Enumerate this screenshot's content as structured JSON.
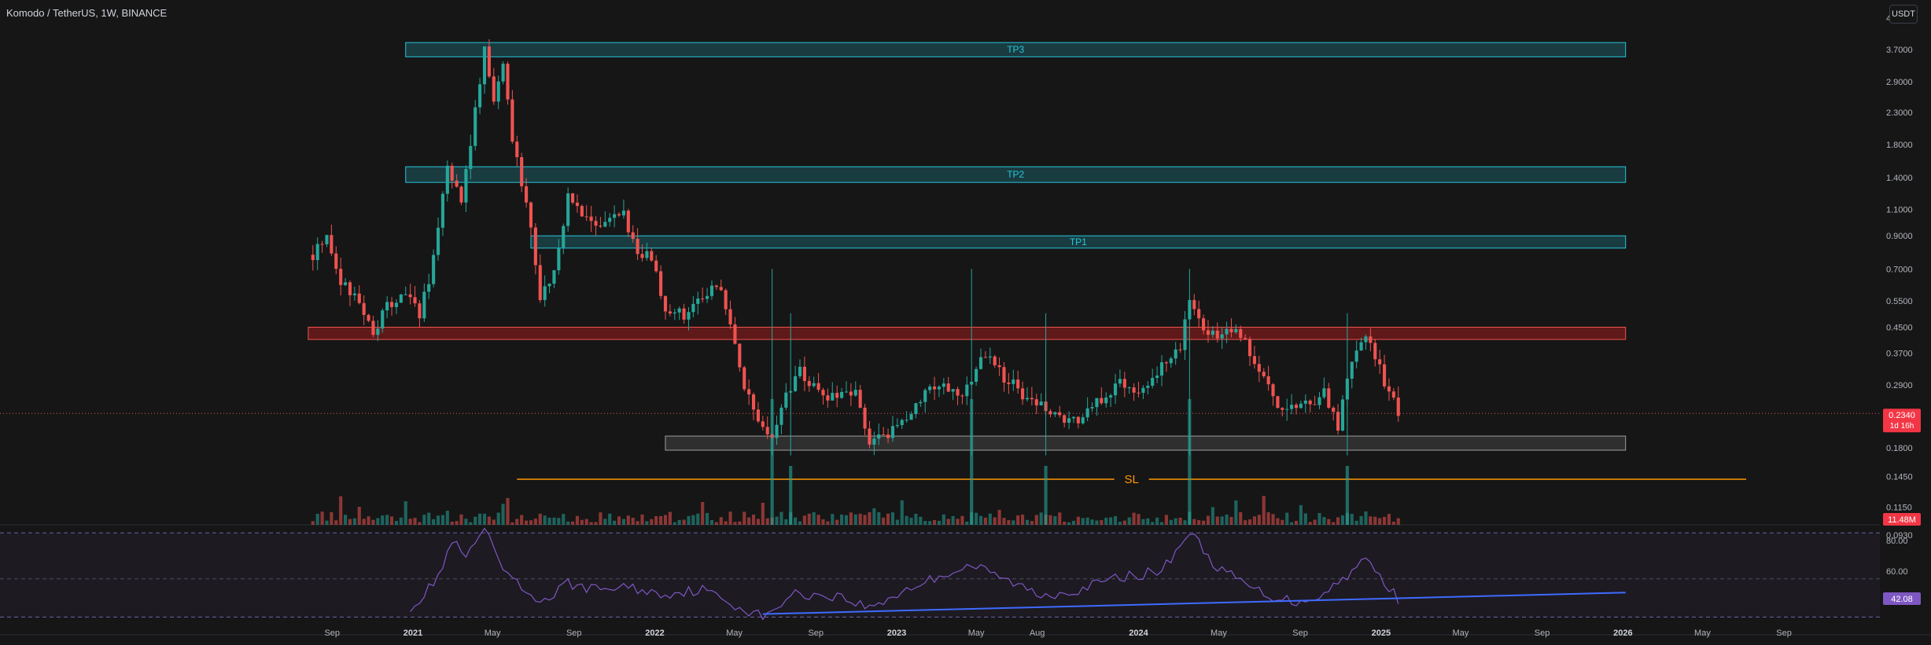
{
  "title": "Komodo / TetherUS, 1W, BINANCE",
  "currency_button": "USDT",
  "colors": {
    "background": "#161616",
    "up": "#26a69a",
    "down": "#ef5350",
    "tp_zone": "#26c6da",
    "resistance_zone": "#b71c1c",
    "support_zone": "#9e9e9e",
    "stop_loss": "#ff9800",
    "rsi_line": "#7e57c2",
    "rsi_trend": "#3f6bff",
    "price_badge": "#f23645",
    "rsi_badge": "#7e57c2"
  },
  "chart_data": [
    {
      "type": "candlestick",
      "interval": "1W",
      "scale": "log",
      "price_axis_ticks": [
        "4.7000",
        "3.7000",
        "2.9000",
        "2.3000",
        "1.8000",
        "1.4000",
        "1.1000",
        "0.9000",
        "0.7000",
        "0.5500",
        "0.4500",
        "0.3700",
        "0.2900",
        "0.2340",
        "0.1800",
        "0.1450",
        "0.1150",
        "0.0930"
      ],
      "time_axis_ticks": [
        "Sep",
        "2021",
        "May",
        "Sep",
        "2022",
        "May",
        "Sep",
        "2023",
        "May",
        "Aug",
        "2024",
        "May",
        "Sep",
        "2025",
        "May",
        "Sep",
        "2026",
        "May",
        "Sep"
      ],
      "current_price": "0.2340",
      "countdown": "1d 16h",
      "volume_label": "11.48M",
      "price_path": [
        [
          "2020-08-03",
          0.78
        ],
        [
          "2020-08-24",
          0.92
        ],
        [
          "2020-09-14",
          0.63
        ],
        [
          "2020-10-12",
          0.55
        ],
        [
          "2020-11-02",
          0.44
        ],
        [
          "2020-11-23",
          0.52
        ],
        [
          "2020-12-21",
          0.58
        ],
        [
          "2021-01-11",
          0.5
        ],
        [
          "2021-02-01",
          0.75
        ],
        [
          "2021-02-22",
          1.5
        ],
        [
          "2021-03-15",
          1.2
        ],
        [
          "2021-04-05",
          2.3
        ],
        [
          "2021-04-19",
          3.7
        ],
        [
          "2021-05-03",
          2.5
        ],
        [
          "2021-05-17",
          3.3
        ],
        [
          "2021-05-31",
          1.8
        ],
        [
          "2021-06-21",
          1.2
        ],
        [
          "2021-07-12",
          0.58
        ],
        [
          "2021-08-02",
          0.68
        ],
        [
          "2021-08-23",
          1.2
        ],
        [
          "2021-09-13",
          1.05
        ],
        [
          "2021-10-04",
          0.95
        ],
        [
          "2021-10-25",
          1.0
        ],
        [
          "2021-11-15",
          1.05
        ],
        [
          "2021-12-06",
          0.82
        ],
        [
          "2021-12-27",
          0.75
        ],
        [
          "2022-01-17",
          0.52
        ],
        [
          "2022-02-14",
          0.5
        ],
        [
          "2022-03-14",
          0.55
        ],
        [
          "2022-04-04",
          0.62
        ],
        [
          "2022-04-25",
          0.48
        ],
        [
          "2022-05-16",
          0.28
        ],
        [
          "2022-06-06",
          0.22
        ],
        [
          "2022-06-27",
          0.2
        ],
        [
          "2022-07-18",
          0.27
        ],
        [
          "2022-08-08",
          0.32
        ],
        [
          "2022-09-05",
          0.27
        ],
        [
          "2022-10-03",
          0.26
        ],
        [
          "2022-10-31",
          0.27
        ],
        [
          "2022-11-21",
          0.19
        ],
        [
          "2022-12-19",
          0.2
        ],
        [
          "2023-01-16",
          0.23
        ],
        [
          "2023-02-13",
          0.28
        ],
        [
          "2023-03-13",
          0.3
        ],
        [
          "2023-04-03",
          0.26
        ],
        [
          "2023-04-24",
          0.3
        ],
        [
          "2023-05-15",
          0.37
        ],
        [
          "2023-06-12",
          0.31
        ],
        [
          "2023-07-03",
          0.28
        ],
        [
          "2023-08-07",
          0.25
        ],
        [
          "2023-09-04",
          0.22
        ],
        [
          "2023-10-02",
          0.22
        ],
        [
          "2023-11-06",
          0.26
        ],
        [
          "2023-12-04",
          0.3
        ],
        [
          "2024-01-08",
          0.28
        ],
        [
          "2024-02-05",
          0.33
        ],
        [
          "2024-03-04",
          0.38
        ],
        [
          "2024-03-18",
          0.58
        ],
        [
          "2024-04-08",
          0.45
        ],
        [
          "2024-05-06",
          0.43
        ],
        [
          "2024-06-03",
          0.42
        ],
        [
          "2024-07-08",
          0.3
        ],
        [
          "2024-08-05",
          0.23
        ],
        [
          "2024-09-02",
          0.25
        ],
        [
          "2024-10-07",
          0.27
        ],
        [
          "2024-10-28",
          0.21
        ],
        [
          "2024-11-18",
          0.35
        ],
        [
          "2024-12-09",
          0.43
        ],
        [
          "2025-01-06",
          0.3
        ],
        [
          "2025-01-27",
          0.234
        ]
      ],
      "volume_spikes": [
        [
          "2022-06-27",
          "big"
        ],
        [
          "2022-07-25",
          "medium"
        ],
        [
          "2023-04-24",
          "big"
        ],
        [
          "2023-08-14",
          "medium"
        ],
        [
          "2024-03-18",
          "big"
        ],
        [
          "2024-11-11",
          "medium"
        ]
      ]
    },
    {
      "type": "line",
      "name": "RSI",
      "y_ticks": [
        "80.00",
        "60.00"
      ],
      "current_value": "42.08",
      "values_path": [
        [
          "2020-12-28",
          37
        ],
        [
          "2021-01-18",
          44
        ],
        [
          "2021-02-15",
          62
        ],
        [
          "2021-03-01",
          80
        ],
        [
          "2021-03-22",
          68
        ],
        [
          "2021-04-19",
          88
        ],
        [
          "2021-05-10",
          65
        ],
        [
          "2021-06-14",
          48
        ],
        [
          "2021-07-19",
          40
        ],
        [
          "2021-08-23",
          52
        ],
        [
          "2021-10-04",
          48
        ],
        [
          "2021-11-15",
          50
        ],
        [
          "2022-01-10",
          45
        ],
        [
          "2022-03-14",
          48
        ],
        [
          "2022-05-16",
          35
        ],
        [
          "2022-06-20",
          30
        ],
        [
          "2022-07-25",
          45
        ],
        [
          "2022-10-03",
          44
        ],
        [
          "2022-11-21",
          36
        ],
        [
          "2023-01-16",
          48
        ],
        [
          "2023-03-13",
          58
        ],
        [
          "2023-04-24",
          64
        ],
        [
          "2023-06-12",
          55
        ],
        [
          "2023-08-07",
          44
        ],
        [
          "2023-10-02",
          48
        ],
        [
          "2023-12-04",
          56
        ],
        [
          "2024-02-05",
          60
        ],
        [
          "2024-03-18",
          86
        ],
        [
          "2024-04-29",
          62
        ],
        [
          "2024-07-08",
          45
        ],
        [
          "2024-08-26",
          40
        ],
        [
          "2024-10-07",
          45
        ],
        [
          "2024-12-09",
          68
        ],
        [
          "2025-01-27",
          42
        ]
      ]
    }
  ],
  "annotations": {
    "tp3": {
      "label": "TP3",
      "bottom": 3.5,
      "top": 3.9,
      "start": "2020-12-21",
      "end": "2026-01-05"
    },
    "tp2": {
      "label": "TP2",
      "bottom": 1.35,
      "top": 1.52,
      "start": "2020-12-21",
      "end": "2026-01-05"
    },
    "tp1": {
      "label": "TP1",
      "bottom": 0.82,
      "top": 0.9,
      "start": "2021-06-28",
      "end": "2026-01-05"
    },
    "resistance": {
      "bottom": 0.41,
      "top": 0.45,
      "start": "2020-07-27",
      "end": "2026-01-05"
    },
    "support": {
      "bottom": 0.177,
      "top": 0.197,
      "start": "2022-01-17",
      "end": "2026-01-05"
    },
    "stop_loss": {
      "label": "SL",
      "price": 0.142,
      "start": "2021-06-07",
      "end": "2026-07-06"
    },
    "rsi_trendline": {
      "start": [
        "2022-06-13",
        32
      ],
      "end": [
        "2026-01-05",
        46
      ]
    }
  }
}
